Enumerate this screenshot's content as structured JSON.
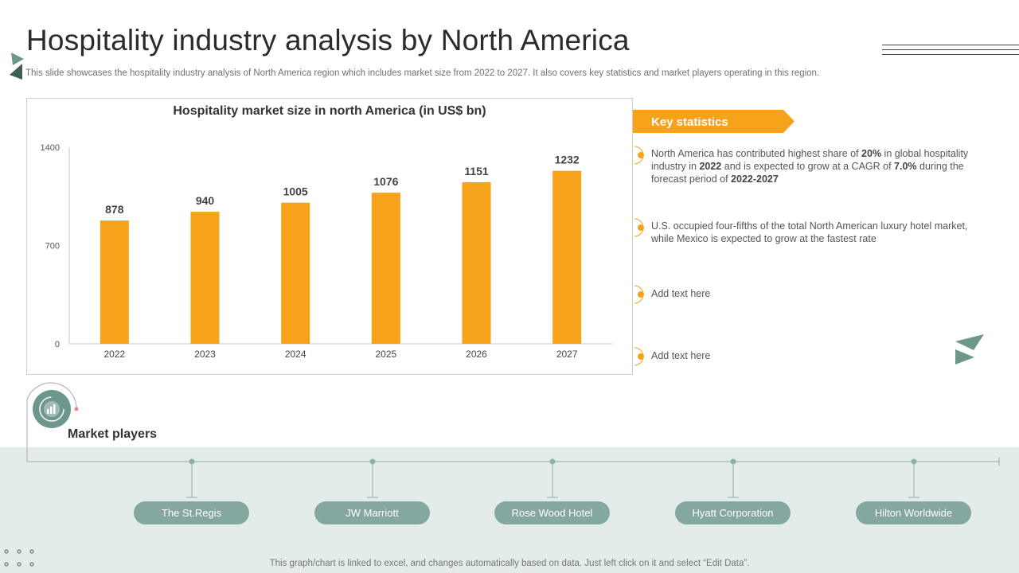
{
  "header": {
    "title": "Hospitality industry analysis by North America",
    "subtitle": "This slide showcases the hospitality industry analysis of North America region which includes market size from 2022 to 2027. It also covers key statistics and market players operating in this region."
  },
  "chart_data": {
    "type": "bar",
    "title": "Hospitality market size in north America (in US$ bn)",
    "categories": [
      "2022",
      "2023",
      "2024",
      "2025",
      "2026",
      "2027"
    ],
    "values": [
      878,
      940,
      1005,
      1076,
      1151,
      1232
    ],
    "ylim": [
      0,
      1400
    ],
    "yticks": [
      0,
      700,
      1400
    ],
    "bar_color": "#f7a21b",
    "grid": false,
    "legend": "none"
  },
  "key_statistics": {
    "label": "Key statistics",
    "items": [
      {
        "parts": [
          {
            "text": "North America has contributed highest share of ",
            "bold": false
          },
          {
            "text": "20%",
            "bold": true
          },
          {
            "text": " in global hospitality industry in ",
            "bold": false
          },
          {
            "text": "2022",
            "bold": true
          },
          {
            "text": " and is expected to grow at a CAGR of ",
            "bold": false
          },
          {
            "text": "7.0%",
            "bold": true
          },
          {
            "text": " during the forecast period of ",
            "bold": false
          },
          {
            "text": "2022-2027",
            "bold": true
          }
        ]
      },
      {
        "parts": [
          {
            "text": "U.S. occupied four-fifths of the total North American luxury hotel market, while Mexico is expected to grow at the fastest rate",
            "bold": false
          }
        ]
      },
      {
        "parts": [
          {
            "text": "Add text here",
            "bold": false
          }
        ]
      },
      {
        "parts": [
          {
            "text": "Add text here",
            "bold": false
          }
        ]
      }
    ]
  },
  "market_players": {
    "title": "Market players",
    "players": [
      "The St.Regis",
      "JW Marriott",
      "Rose Wood Hotel",
      "Hyatt Corporation",
      "Hilton Worldwide"
    ]
  },
  "footer": "This graph/chart is linked to excel, and changes automatically based on data. Just left click on it and select “Edit Data”.",
  "colors": {
    "accent": "#f7a21b",
    "teal": "#6d968d",
    "band": "#e3ebeb"
  },
  "icons": [
    "triangle-logo-icon",
    "chart-circle-icon",
    "paper-plane-icon",
    "dots-decoration-icon"
  ]
}
